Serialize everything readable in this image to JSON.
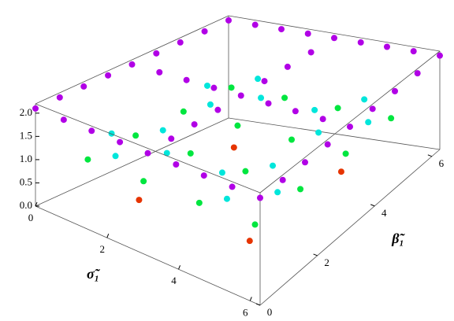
{
  "chart_data": {
    "type": "scatter3d",
    "xlabel": "σ̃₁",
    "ylabel": "β̃₁",
    "xlim": [
      0,
      6.28
    ],
    "ylim": [
      0,
      6.28
    ],
    "zlim": [
      0,
      2.2
    ],
    "xticks": [
      0,
      2,
      4,
      6
    ],
    "yticks": [
      0,
      2,
      4,
      6
    ],
    "zticks": [
      {
        "value": 0,
        "label": "0.0"
      },
      {
        "value": 0.5,
        "label": "0.5"
      },
      {
        "value": 1,
        "label": "1.0"
      },
      {
        "value": 1.5,
        "label": "1.5"
      },
      {
        "value": 2,
        "label": "2.0"
      }
    ],
    "colormap": "hue",
    "x": [
      0,
      0,
      0,
      0,
      0,
      0,
      0,
      0,
      0,
      0.79,
      0.79,
      0.79,
      0.79,
      0.79,
      0.79,
      0.79,
      0.79,
      0.79,
      1.57,
      1.57,
      1.57,
      1.57,
      1.57,
      1.57,
      1.57,
      1.57,
      1.57,
      2.36,
      2.36,
      2.36,
      2.36,
      2.36,
      2.36,
      2.36,
      2.36,
      2.36,
      3.14,
      3.14,
      3.14,
      3.14,
      3.14,
      3.14,
      3.14,
      3.14,
      3.14,
      3.93,
      3.93,
      3.93,
      3.93,
      3.93,
      3.93,
      3.93,
      3.93,
      3.93,
      4.71,
      4.71,
      4.71,
      4.71,
      4.71,
      4.71,
      4.71,
      4.71,
      4.71,
      5.5,
      5.5,
      5.5,
      5.5,
      5.5,
      5.5,
      5.5,
      5.5,
      5.5,
      6.28,
      6.28,
      6.28,
      6.28,
      6.28,
      6.28,
      6.28,
      6.28,
      6.28
    ],
    "y": [
      0,
      0.79,
      1.57,
      2.36,
      3.14,
      3.93,
      4.71,
      5.5,
      6.28,
      0,
      0.79,
      1.57,
      2.36,
      3.14,
      3.93,
      4.71,
      5.5,
      6.28,
      0,
      0.79,
      1.57,
      2.36,
      3.14,
      3.93,
      4.71,
      5.5,
      6.28,
      0,
      0.79,
      1.57,
      2.36,
      3.14,
      3.93,
      4.71,
      5.5,
      6.28,
      0,
      0.79,
      1.57,
      2.36,
      3.14,
      3.93,
      4.71,
      5.5,
      6.28,
      0,
      0.79,
      1.57,
      2.36,
      3.14,
      3.93,
      4.71,
      5.5,
      6.28,
      0,
      0.79,
      1.57,
      2.36,
      3.14,
      3.93,
      4.71,
      5.5,
      6.28,
      0,
      0.79,
      1.57,
      2.36,
      3.14,
      3.93,
      4.71,
      5.5,
      6.28,
      0,
      0.79,
      1.57,
      2.36,
      3.14,
      3.93,
      4.71,
      5.5,
      6.28
    ],
    "z": [
      2.1,
      2.1,
      2.1,
      2.1,
      2.1,
      2.1,
      2.1,
      2.1,
      2.1,
      2.1,
      1.0,
      1.3,
      1.0,
      2.1,
      1.0,
      1.3,
      1.0,
      2.1,
      2.1,
      1.3,
      0.1,
      1.3,
      2.1,
      1.3,
      0.1,
      1.3,
      2.1,
      2.1,
      1.0,
      1.3,
      1.0,
      2.1,
      1.0,
      1.3,
      1.0,
      2.1,
      2.1,
      2.1,
      2.1,
      2.1,
      2.1,
      2.1,
      2.1,
      2.1,
      2.1,
      2.1,
      1.0,
      1.3,
      1.0,
      2.1,
      1.0,
      1.3,
      1.0,
      2.1,
      2.1,
      1.3,
      0.1,
      1.3,
      2.1,
      1.3,
      0.1,
      1.3,
      2.1,
      2.1,
      1.0,
      1.3,
      1.0,
      2.1,
      1.0,
      1.3,
      1.0,
      2.1,
      2.1,
      2.1,
      2.1,
      2.1,
      2.1,
      2.1,
      2.1,
      2.1,
      2.1
    ]
  }
}
